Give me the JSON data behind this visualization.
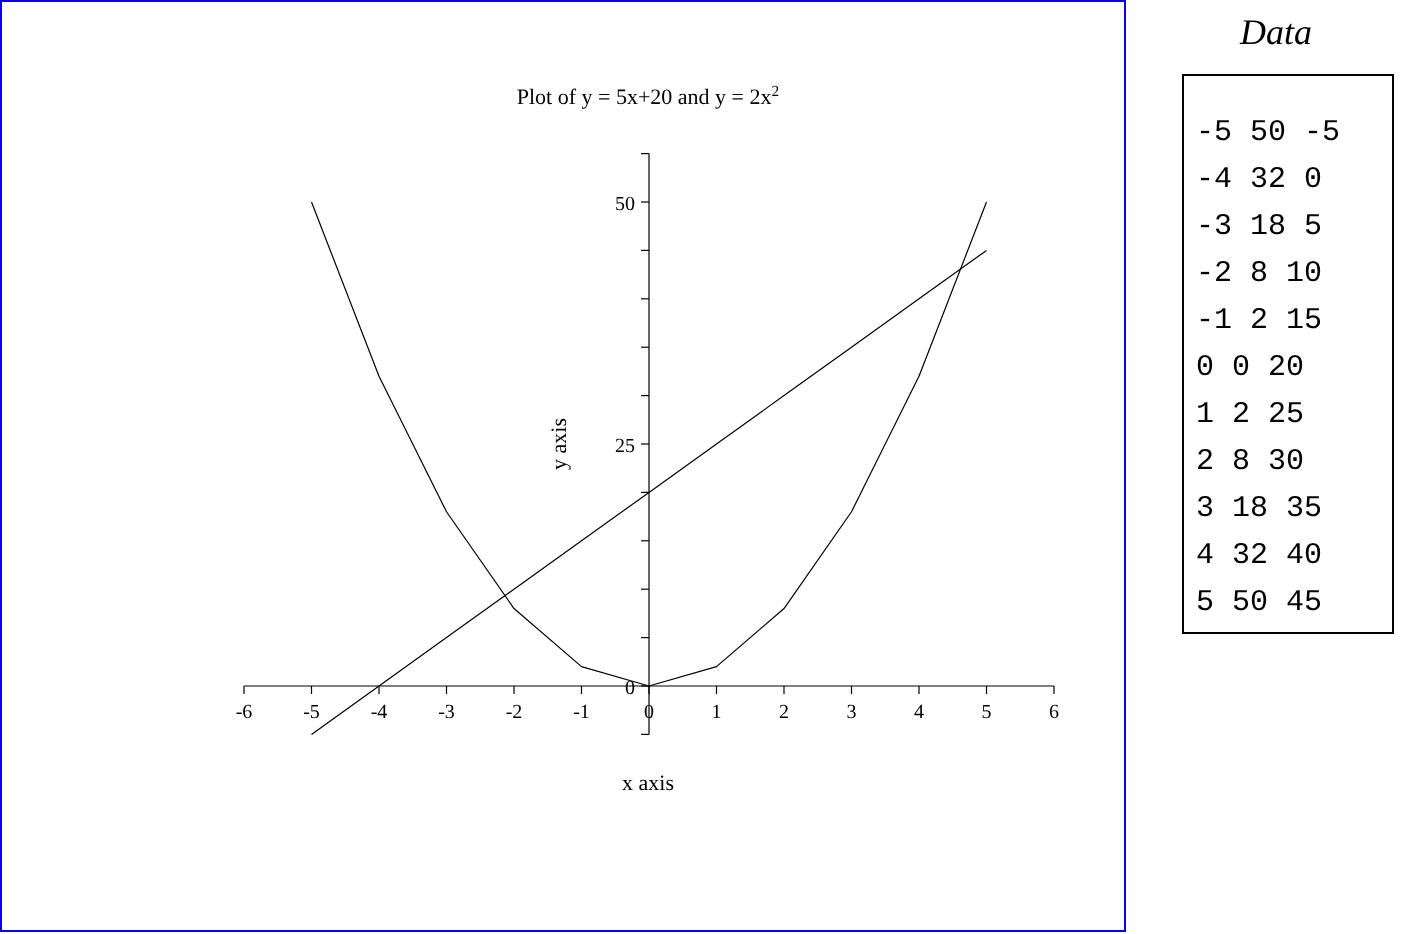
{
  "chart_data": {
    "type": "line",
    "title": "Plot of y = 5x+20 and y = 2x$^{2}$",
    "xlabel": "x axis",
    "ylabel": "y axis",
    "x": [
      -5,
      -4,
      -3,
      -2,
      -1,
      0,
      1,
      2,
      3,
      4,
      5
    ],
    "series": [
      {
        "color": "#000000",
        "values": [
          50,
          32,
          18,
          8,
          2,
          0,
          2,
          8,
          18,
          32,
          50
        ]
      },
      {
        "color": "#000000",
        "values": [
          -5,
          0,
          5,
          10,
          15,
          20,
          25,
          30,
          35,
          40,
          45
        ]
      }
    ],
    "xlim": [
      -6,
      6
    ],
    "xticks": [
      -6,
      -5,
      -4,
      -3,
      -2,
      -1,
      0,
      1,
      2,
      3,
      4,
      5,
      6
    ],
    "ylim": [
      -5,
      55
    ],
    "yticks": [
      {
        "value": -5,
        "label": null
      },
      0,
      {
        "value": 5,
        "label": null
      },
      {
        "value": 10,
        "label": null
      },
      {
        "value": 15,
        "label": null
      },
      {
        "value": 20,
        "label": null
      },
      25,
      {
        "value": 30,
        "label": null
      },
      {
        "value": 35,
        "label": null
      },
      {
        "value": 40,
        "label": null
      },
      {
        "value": 45,
        "label": null
      },
      50,
      {
        "value": 55,
        "label": null
      }
    ],
    "grid": false,
    "marker": "none",
    "line_style": "solid",
    "annotations": [
      "Data",
      "-5 50 -5",
      "-4 32 0",
      "-3 18 5",
      "-2 8 10",
      "-1 2 15",
      "0 0 20",
      "1 2 25",
      "2 8 30",
      "3 18 35",
      "4 32 40",
      "5 50 45"
    ]
  }
}
